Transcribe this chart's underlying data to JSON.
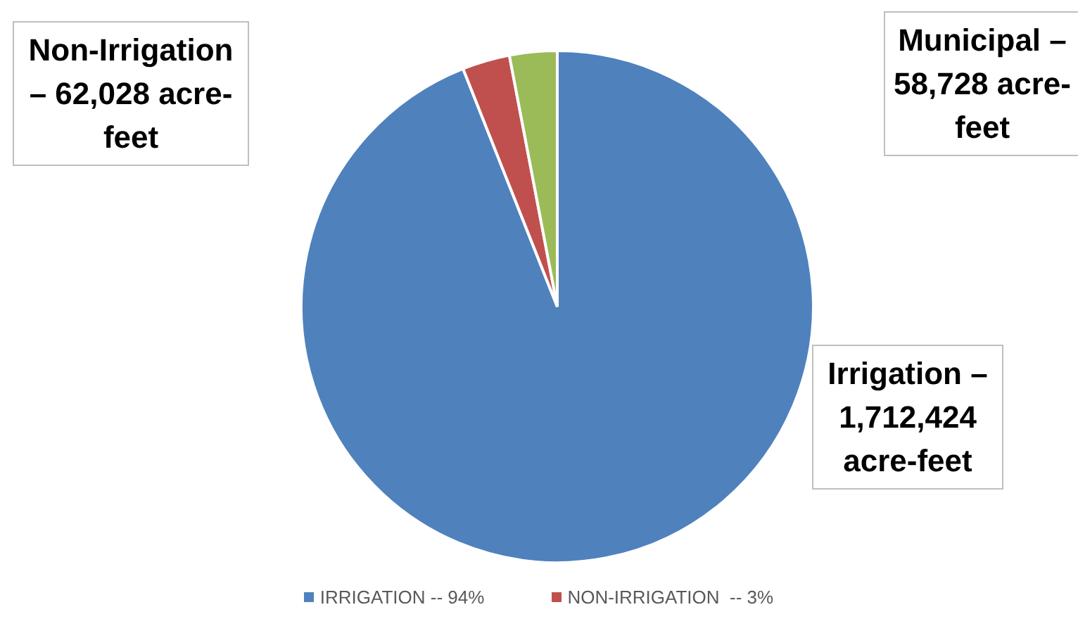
{
  "chart_data": {
    "type": "pie",
    "categories": [
      "IRRIGATION -- 94%",
      "NON-IRRIGATION  -- 3%",
      null
    ],
    "values": [
      94,
      3,
      3
    ],
    "colors": [
      "#4f81bd",
      "#c0504d",
      "#9bbb59"
    ],
    "legend": "bottom",
    "annotations": [
      "Irrigation – 1,712,424 acre-feet",
      "Non-Irrigation – 62,028 acre-feet",
      "Municipal – 58,728 acre-feet"
    ]
  }
}
